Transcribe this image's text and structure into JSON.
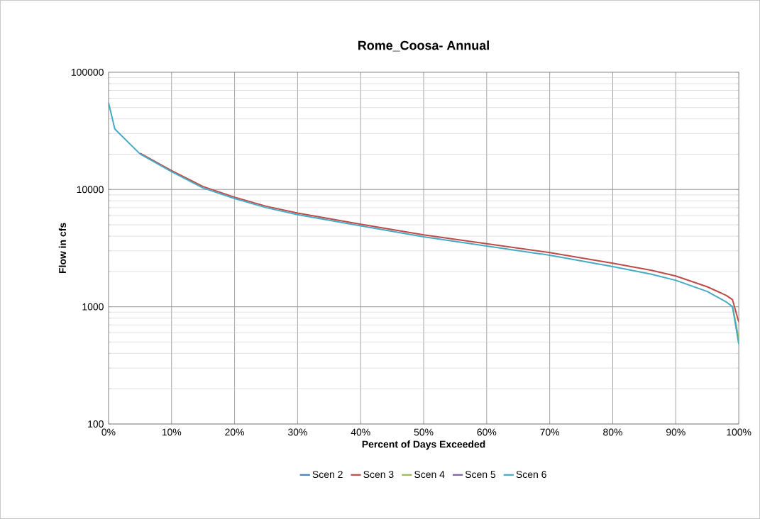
{
  "chart_data": {
    "type": "line",
    "title": "Rome_Coosa- Annual",
    "xlabel": "Percent of Days Exceeded",
    "ylabel": "Flow in cfs",
    "x": [
      0,
      1,
      5,
      10,
      15,
      20,
      25,
      30,
      40,
      50,
      60,
      70,
      80,
      86,
      90,
      95,
      98,
      99,
      100
    ],
    "series": [
      {
        "name": "Scen 2",
        "color": "#4a7ebb",
        "values": [
          null,
          null,
          null,
          null,
          null,
          null,
          null,
          null,
          null,
          null,
          null,
          null,
          null,
          null,
          null,
          null,
          null,
          null,
          null
        ]
      },
      {
        "name": "Scen 3",
        "color": "#be4b48",
        "values": [
          null,
          null,
          20400,
          14500,
          10600,
          8600,
          7200,
          6300,
          5050,
          4100,
          3450,
          2900,
          2350,
          2050,
          1830,
          1480,
          1250,
          1150,
          740
        ]
      },
      {
        "name": "Scen 4",
        "color": "#98b954",
        "values": [
          null,
          null,
          null,
          null,
          null,
          null,
          null,
          null,
          null,
          null,
          null,
          null,
          null,
          null,
          null,
          null,
          null,
          1020,
          530
        ]
      },
      {
        "name": "Scen 5",
        "color": "#7d60a0",
        "values": [
          null,
          null,
          null,
          null,
          null,
          null,
          null,
          null,
          null,
          null,
          null,
          null,
          null,
          null,
          null,
          null,
          null,
          null,
          null
        ]
      },
      {
        "name": "Scen 6",
        "color": "#46aac5",
        "values": [
          55000,
          32800,
          20100,
          14200,
          10300,
          8380,
          7000,
          6100,
          4900,
          3950,
          3300,
          2750,
          2200,
          1900,
          1680,
          1350,
          1100,
          1000,
          480
        ]
      }
    ],
    "xlim": [
      0,
      100
    ],
    "xticks": [
      {
        "value": 0,
        "label": "0%"
      },
      {
        "value": 10,
        "label": "10%"
      },
      {
        "value": 20,
        "label": "20%"
      },
      {
        "value": 30,
        "label": "30%"
      },
      {
        "value": 40,
        "label": "40%"
      },
      {
        "value": 50,
        "label": "50%"
      },
      {
        "value": 60,
        "label": "60%"
      },
      {
        "value": 70,
        "label": "70%"
      },
      {
        "value": 80,
        "label": "80%"
      },
      {
        "value": 90,
        "label": "90%"
      },
      {
        "value": 100,
        "label": "100%"
      }
    ],
    "ylim": [
      100,
      100000
    ],
    "yticks": [
      100,
      1000,
      10000,
      100000
    ],
    "log": "y",
    "grid": true,
    "legend": "bottom",
    "marker": "none",
    "line_style": "solid"
  }
}
